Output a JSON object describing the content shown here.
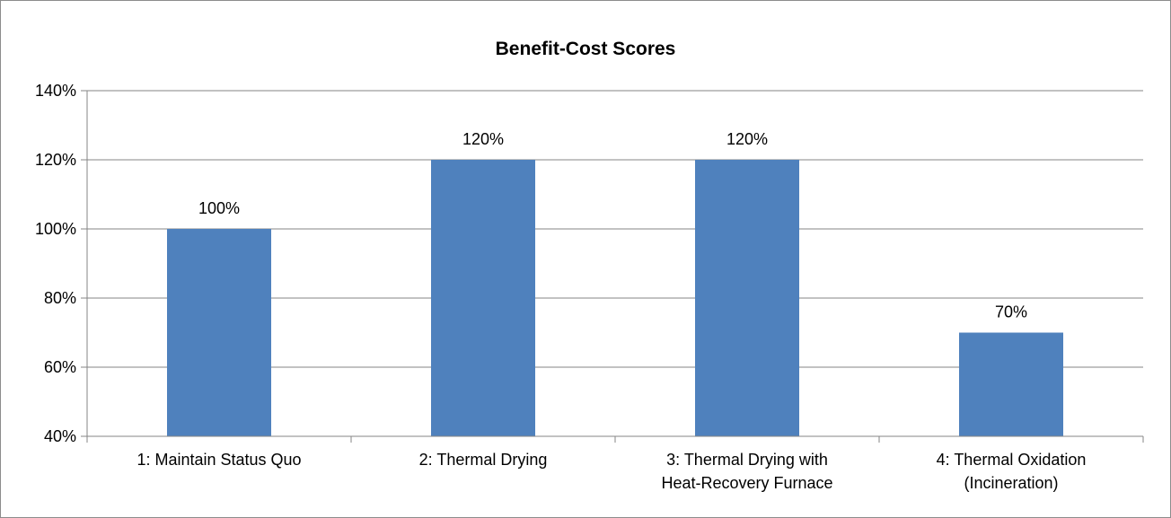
{
  "chart_data": {
    "type": "bar",
    "title": "Benefit-Cost Scores",
    "xlabel": "",
    "ylabel": "",
    "categories": [
      [
        "1: Maintain Status Quo"
      ],
      [
        "2: Thermal Drying"
      ],
      [
        "3: Thermal Drying with",
        "Heat-Recovery Furnace"
      ],
      [
        "4: Thermal Oxidation",
        "(Incineration)"
      ]
    ],
    "values": [
      100,
      120,
      120,
      70
    ],
    "data_labels": [
      "100%",
      "120%",
      "120%",
      "70%"
    ],
    "ylim": [
      40,
      140
    ],
    "yticks": [
      40,
      60,
      80,
      100,
      120,
      140
    ],
    "ytick_labels": [
      "40%",
      "60%",
      "80%",
      "100%",
      "120%",
      "140%"
    ],
    "grid": true,
    "legend": "none",
    "colors": {
      "bar": "#4f81bd",
      "grid": "#868686",
      "axis": "#868686"
    }
  }
}
